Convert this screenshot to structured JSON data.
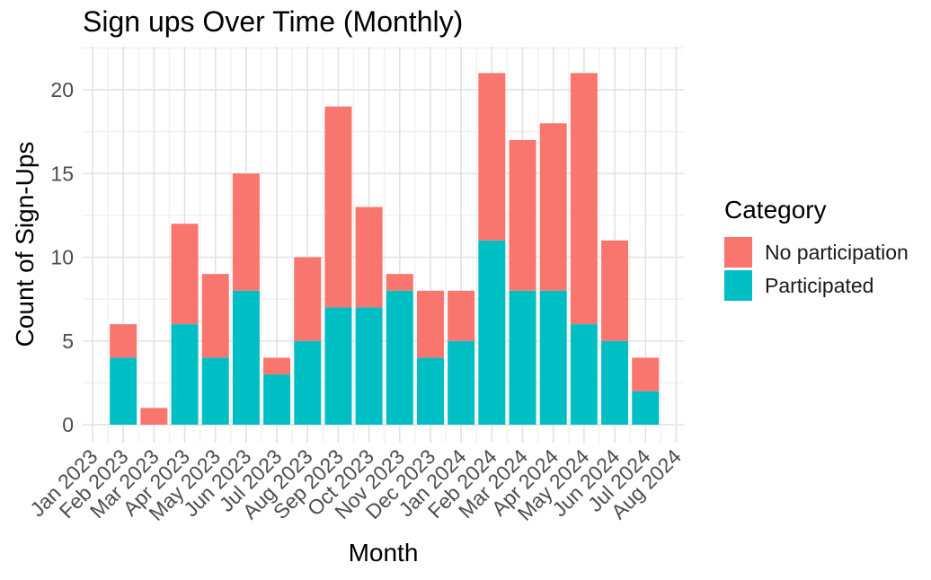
{
  "figure": {
    "title": "Sign ups Over Time (Monthly)",
    "xlabel": "Month",
    "ylabel": "Count of Sign-Ups"
  },
  "legend": {
    "title": "Category",
    "entries": [
      {
        "label": "No participation",
        "color": "#F8766D"
      },
      {
        "label": "Participated",
        "color": "#00BFC4"
      }
    ]
  },
  "chart_data": {
    "type": "bar",
    "stacked": true,
    "title": "Sign ups Over Time (Monthly)",
    "xlabel": "Month",
    "ylabel": "Count of Sign-Ups",
    "categories": [
      "Jan 2023",
      "Feb 2023",
      "Mar 2023",
      "Apr 2023",
      "May 2023",
      "Jun 2023",
      "Jul 2023",
      "Aug 2023",
      "Sep 2023",
      "Oct 2023",
      "Nov 2023",
      "Dec 2023",
      "Jan 2024",
      "Feb 2024",
      "Mar 2024",
      "Apr 2024",
      "May 2024",
      "Jun 2024",
      "Jul 2024",
      "Aug 2024"
    ],
    "series": [
      {
        "name": "Participated",
        "color": "#00BFC4",
        "values": [
          null,
          4,
          0,
          6,
          4,
          8,
          3,
          5,
          7,
          7,
          8,
          4,
          5,
          11,
          8,
          8,
          6,
          5,
          2,
          null
        ]
      },
      {
        "name": "No participation",
        "color": "#F8766D",
        "values": [
          null,
          2,
          1,
          6,
          5,
          7,
          1,
          5,
          12,
          6,
          1,
          4,
          3,
          10,
          9,
          10,
          15,
          6,
          2,
          null
        ]
      }
    ],
    "totals": [
      null,
      6,
      1,
      12,
      9,
      15,
      4,
      10,
      19,
      13,
      9,
      8,
      8,
      21,
      17,
      18,
      21,
      11,
      4,
      null
    ],
    "yticks": [
      0,
      5,
      10,
      15,
      20
    ],
    "ylim": [
      -1.1,
      22.5
    ],
    "grid": {
      "on": true,
      "major_color": "#E2E2E2",
      "minor_color": "#EFEFEF"
    },
    "axis_text_color": "#4D4D4D",
    "legend_position": "right"
  }
}
